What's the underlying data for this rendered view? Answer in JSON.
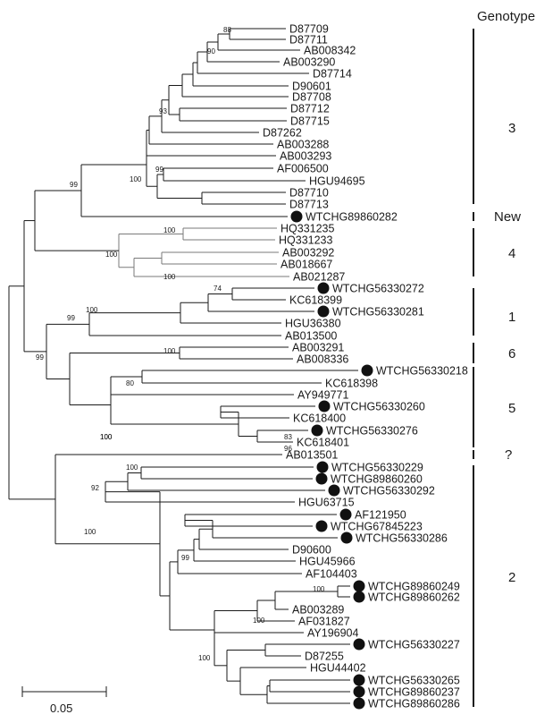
{
  "title": "Genotype",
  "scale_bar_label": "0.05",
  "genotypes": [
    {
      "label": "3"
    },
    {
      "label": "New"
    },
    {
      "label": "4"
    },
    {
      "label": "1"
    },
    {
      "label": "6"
    },
    {
      "label": "5"
    },
    {
      "label": "?"
    },
    {
      "label": "2"
    }
  ],
  "leaves": [
    {
      "label": "D87709",
      "marked": false
    },
    {
      "label": "D87711",
      "marked": false
    },
    {
      "label": "AB008342",
      "marked": false
    },
    {
      "label": "AB003290",
      "marked": false
    },
    {
      "label": "D87714",
      "marked": false
    },
    {
      "label": "D90601",
      "marked": false
    },
    {
      "label": "D87708",
      "marked": false
    },
    {
      "label": "D87712",
      "marked": false
    },
    {
      "label": "D87715",
      "marked": false
    },
    {
      "label": "D87262",
      "marked": false
    },
    {
      "label": "AB003288",
      "marked": false
    },
    {
      "label": "AB003293",
      "marked": false
    },
    {
      "label": "AF006500",
      "marked": false
    },
    {
      "label": "HGU94695",
      "marked": false
    },
    {
      "label": "D87710",
      "marked": false
    },
    {
      "label": "D87713",
      "marked": false
    },
    {
      "label": "WTCHG89860282",
      "marked": true
    },
    {
      "label": "HQ331235",
      "marked": false
    },
    {
      "label": "HQ331233",
      "marked": false
    },
    {
      "label": "AB003292",
      "marked": false
    },
    {
      "label": "AB018667",
      "marked": false
    },
    {
      "label": "AB021287",
      "marked": false
    },
    {
      "label": "WTCHG56330272",
      "marked": true
    },
    {
      "label": "KC618399",
      "marked": false
    },
    {
      "label": "WTCHG56330281",
      "marked": true
    },
    {
      "label": "HGU36380",
      "marked": false
    },
    {
      "label": "AB013500",
      "marked": false
    },
    {
      "label": "AB003291",
      "marked": false
    },
    {
      "label": "AB008336",
      "marked": false
    },
    {
      "label": "WTCHG56330218",
      "marked": true
    },
    {
      "label": "KC618398",
      "marked": false
    },
    {
      "label": "AY949771",
      "marked": false
    },
    {
      "label": "WTCHG56330260",
      "marked": true
    },
    {
      "label": "KC618400",
      "marked": false
    },
    {
      "label": "WTCHG56330276",
      "marked": true
    },
    {
      "label": "KC618401",
      "marked": false
    },
    {
      "label": "AB013501",
      "marked": false
    },
    {
      "label": "WTCHG56330229",
      "marked": true
    },
    {
      "label": "WTCHG89860260",
      "marked": true
    },
    {
      "label": "WTCHG56330292",
      "marked": true
    },
    {
      "label": "HGU63715",
      "marked": false
    },
    {
      "label": "AF121950",
      "marked": true
    },
    {
      "label": "WTCHG67845223",
      "marked": true
    },
    {
      "label": "WTCHG56330286",
      "marked": true
    },
    {
      "label": "D90600",
      "marked": false
    },
    {
      "label": "HGU45966",
      "marked": false
    },
    {
      "label": "AF104403",
      "marked": false
    },
    {
      "label": "WTCHG89860249",
      "marked": true
    },
    {
      "label": "WTCHG89860262",
      "marked": true
    },
    {
      "label": "AB003289",
      "marked": false
    },
    {
      "label": "AF031827",
      "marked": false
    },
    {
      "label": "AY196904",
      "marked": false
    },
    {
      "label": "WTCHG56330227",
      "marked": true
    },
    {
      "label": "D87255",
      "marked": false
    },
    {
      "label": "HGU44402",
      "marked": false
    },
    {
      "label": "WTCHG56330265",
      "marked": true
    },
    {
      "label": "WTCHG89860237",
      "marked": true
    },
    {
      "label": "WTCHG89860286",
      "marked": true
    }
  ],
  "bootstrap_labels": [
    "88",
    "90",
    "93",
    "100",
    "99",
    "100",
    "99",
    "100",
    "100",
    "100",
    "74",
    "100",
    "99",
    "99",
    "100",
    "80",
    "100",
    "83",
    "96",
    "100",
    "92",
    "100",
    "99",
    "100",
    "100",
    "100"
  ]
}
